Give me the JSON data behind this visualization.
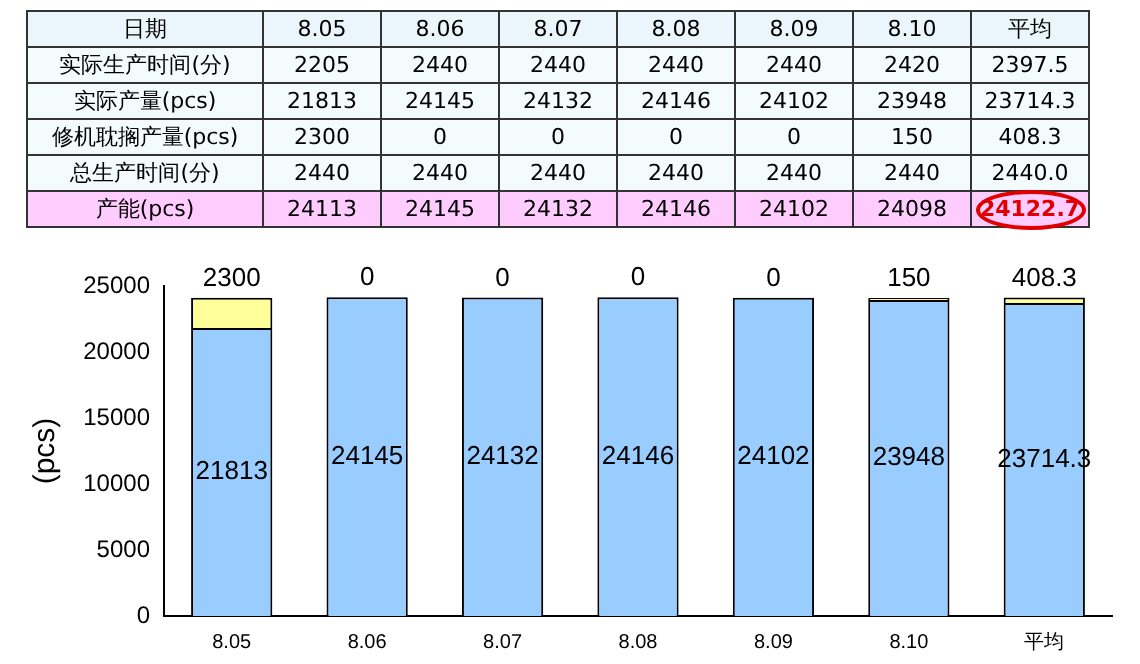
{
  "chart_data": [
    {
      "type": "heatmap",
      "xlabel": "日期",
      "data_labels": true,
      "categories": [
        "8.05",
        "8.06",
        "8.07",
        "8.08",
        "8.09",
        "8.10",
        "平均"
      ],
      "y_categories": [
        "实际生产时间(分)",
        "实际产量(pcs)",
        "修机耽搁产量(pcs)",
        "总生产时间(分)",
        "产能(pcs)"
      ],
      "cells": [
        [
          2205,
          2440,
          2440,
          2440,
          2440,
          2420,
          2397.5
        ],
        [
          21813,
          24145,
          24132,
          24146,
          24102,
          23948,
          23714.3
        ],
        [
          2300,
          0,
          0,
          0,
          0,
          150,
          408.3
        ],
        [
          2440,
          2440,
          2440,
          2440,
          2440,
          2440,
          2440.0
        ],
        [
          24113,
          24145,
          24132,
          24146,
          24102,
          24098,
          24122.7
        ]
      ],
      "cell_labels": [
        [
          "2205",
          "2440",
          "2440",
          "2440",
          "2440",
          "2420",
          "2397.5"
        ],
        [
          "21813",
          "24145",
          "24132",
          "24146",
          "24102",
          "23948",
          "23714.3"
        ],
        [
          "2300",
          "0",
          "0",
          "0",
          "0",
          "150",
          "408.3"
        ],
        [
          "2440",
          "2440",
          "2440",
          "2440",
          "2440",
          "2440",
          "2440.0"
        ],
        [
          "24113",
          "24145",
          "24132",
          "24146",
          "24102",
          "24098",
          "24122.7"
        ]
      ]
    },
    {
      "type": "bar",
      "stacked": true,
      "ylabel": "(pcs)",
      "categories": [
        "8.05",
        "8.06",
        "8.07",
        "8.08",
        "8.09",
        "8.10",
        "平均"
      ],
      "series": [
        {
          "color": "#99ccff",
          "values": [
            21813,
            24145,
            24132,
            24146,
            24102,
            23948,
            23714.3
          ]
        },
        {
          "color": "#ffff99",
          "values": [
            2300,
            0,
            0,
            0,
            0,
            150,
            408.3
          ]
        }
      ],
      "ylim": [
        0,
        25000
      ],
      "yticks": [
        0,
        5000,
        10000,
        15000,
        20000,
        25000
      ],
      "grid": false,
      "legend": false,
      "data_labels": true
    }
  ]
}
